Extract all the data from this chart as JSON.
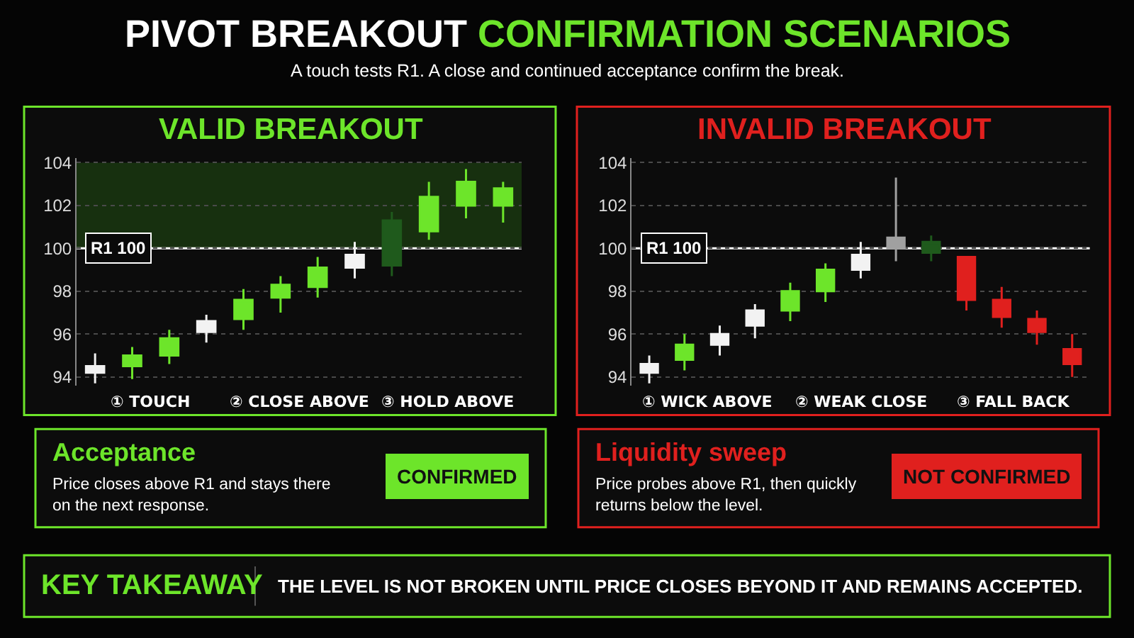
{
  "chart_data": [
    {
      "type": "other",
      "title": "PIVOT BREAKOUT CONFIRMATION SCENARIOS",
      "subtitle": "A touch tests R1. A close and continued acceptance confirm the break.",
      "color": "#6de52a"
    },
    {
      "type": "candlestick",
      "title": "VALID BREAKOUT",
      "color": "#6de52a",
      "categories": [
        null,
        null,
        null,
        null,
        null,
        null,
        null,
        null,
        null,
        null,
        null,
        null
      ],
      "ohlc": [
        [
          94.2,
          95.1,
          93.7,
          94.5
        ],
        [
          94.5,
          95.4,
          93.9,
          95.0
        ],
        [
          95.0,
          96.2,
          94.6,
          95.8
        ],
        [
          96.1,
          96.9,
          95.6,
          96.6
        ],
        [
          96.7,
          98.1,
          96.2,
          97.6
        ],
        [
          97.7,
          98.7,
          97.0,
          98.3
        ],
        [
          98.2,
          99.6,
          97.7,
          99.1
        ],
        [
          99.1,
          100.3,
          98.6,
          99.7
        ],
        [
          99.2,
          101.7,
          98.7,
          101.3
        ],
        [
          100.8,
          103.1,
          100.4,
          102.4
        ],
        [
          102.0,
          103.7,
          101.4,
          103.1
        ],
        [
          102.0,
          103.1,
          101.2,
          102.8
        ]
      ],
      "colors": [
        "#f2f2f2",
        "#6de52a",
        "#6de52a",
        "#f2f2f2",
        "#6de52a",
        "#6de52a",
        "#6de52a",
        "#f2f2f2",
        "#1f5a1c",
        "#6de52a",
        "#6de52a",
        "#6de52a"
      ],
      "ylim": [
        93.6,
        104.2
      ],
      "yticks": [
        94,
        96,
        98,
        100,
        102,
        104
      ],
      "grid": "y",
      "tick_labels": "y",
      "ref_lines": [
        {
          "axis": "y",
          "value": 100,
          "label": "R1 100",
          "color": "#ffffff"
        }
      ],
      "bands": [
        {
          "axis": "y",
          "from": 100,
          "to": 104,
          "color": "#17300f"
        }
      ],
      "annotations": [
        "① TOUCH",
        "② CLOSE ABOVE",
        "③ HOLD ABOVE"
      ]
    },
    {
      "type": "candlestick",
      "title": "INVALID BREAKOUT",
      "color": "#e0201e",
      "categories": [
        null,
        null,
        null,
        null,
        null,
        null,
        null,
        null,
        null,
        null,
        null,
        null,
        null
      ],
      "ohlc": [
        [
          94.2,
          95.0,
          93.7,
          94.6
        ],
        [
          94.8,
          96.0,
          94.3,
          95.5
        ],
        [
          95.5,
          96.4,
          95.0,
          96.0
        ],
        [
          96.4,
          97.4,
          95.8,
          97.1
        ],
        [
          97.1,
          98.4,
          96.6,
          98.0
        ],
        [
          98.0,
          99.3,
          97.5,
          99.0
        ],
        [
          99.0,
          100.3,
          98.6,
          99.7
        ],
        [
          100.0,
          103.3,
          99.4,
          100.5
        ],
        [
          99.8,
          100.6,
          99.4,
          100.3
        ],
        [
          99.6,
          99.6,
          97.1,
          97.6
        ],
        [
          97.6,
          98.2,
          96.3,
          96.8
        ],
        [
          96.7,
          97.1,
          95.5,
          96.1
        ],
        [
          95.3,
          96.0,
          94.0,
          94.6
        ]
      ],
      "colors": [
        "#f2f2f2",
        "#6de52a",
        "#f2f2f2",
        "#f2f2f2",
        "#6de52a",
        "#6de52a",
        "#f2f2f2",
        "#a0a0a0",
        "#1f5a1c",
        "#e0201e",
        "#e0201e",
        "#e0201e",
        "#e0201e"
      ],
      "ylim": [
        93.6,
        104.2
      ],
      "yticks": [
        94,
        96,
        98,
        100,
        102,
        104
      ],
      "grid": "y",
      "tick_labels": "y",
      "ref_lines": [
        {
          "axis": "y",
          "value": 100,
          "label": "R1 100",
          "color": "#ffffff"
        }
      ],
      "annotations": [
        "① WICK ABOVE",
        "② WEAK CLOSE",
        "③ FALL BACK"
      ]
    },
    {
      "type": "other",
      "title": "Acceptance",
      "color": "#6de52a",
      "annotations": [
        "Price closes above R1 and stays there on the next response.",
        "CONFIRMED"
      ]
    },
    {
      "type": "other",
      "title": "Liquidity sweep",
      "color": "#e0201e",
      "annotations": [
        "Price probes above R1, then quickly returns below the level.",
        "NOT CONFIRMED"
      ]
    },
    {
      "type": "other",
      "title": "KEY TAKEAWAY",
      "color": "#6de52a",
      "annotations": [
        "THE LEVEL IS NOT BROKEN UNTIL PRICE CLOSES BEYOND IT AND REMAINS ACCEPTED."
      ]
    }
  ]
}
